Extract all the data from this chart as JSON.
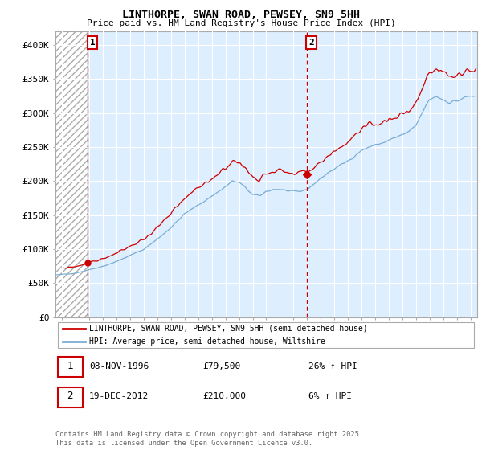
{
  "title1": "LINTHORPE, SWAN ROAD, PEWSEY, SN9 5HH",
  "title2": "Price paid vs. HM Land Registry's House Price Index (HPI)",
  "legend1": "LINTHORPE, SWAN ROAD, PEWSEY, SN9 5HH (semi-detached house)",
  "legend2": "HPI: Average price, semi-detached house, Wiltshire",
  "sale1_date": 1996.86,
  "sale1_price": 79500,
  "sale2_date": 2012.96,
  "sale2_price": 210000,
  "line_color_red": "#cc0000",
  "line_color_blue": "#7aadd4",
  "dashed_color": "#cc0000",
  "chart_bg_color": "#ddeeff",
  "hatch_color": "#bbbbbb",
  "ylim_max": 420000,
  "xmin": 1994.5,
  "xmax": 2025.5,
  "yticks": [
    0,
    50000,
    100000,
    150000,
    200000,
    250000,
    300000,
    350000,
    400000
  ]
}
